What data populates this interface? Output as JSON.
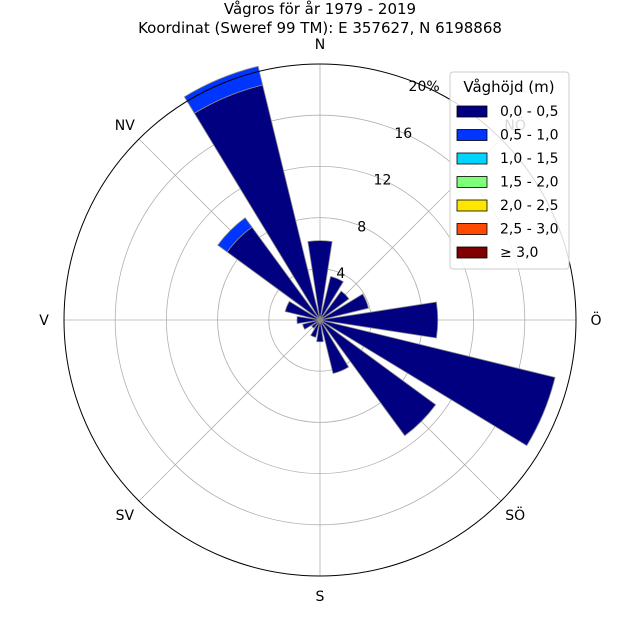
{
  "chart_data": {
    "type": "windrose",
    "title": "Vågros för år 1979 - 2019",
    "subtitle": "Koordinat (Sweref 99 TM): E 357627, N 6198868",
    "directions": [
      "N",
      "NNÖ",
      "NÖ",
      "ÖNÖ",
      "Ö",
      "ÖSÖ",
      "SÖ",
      "SSÖ",
      "S",
      "SSV",
      "SV",
      "VSV",
      "V",
      "VNV",
      "NV",
      "NNV"
    ],
    "direction_labels": [
      {
        "label": "N",
        "angle_deg": 0
      },
      {
        "label": "NÖ",
        "angle_deg": 45
      },
      {
        "label": "Ö",
        "angle_deg": 90
      },
      {
        "label": "SÖ",
        "angle_deg": 135
      },
      {
        "label": "S",
        "angle_deg": 180
      },
      {
        "label": "SV",
        "angle_deg": 225
      },
      {
        "label": "V",
        "angle_deg": 270
      },
      {
        "label": "NV",
        "angle_deg": 315
      }
    ],
    "radial_unit": "%",
    "rmax": 20,
    "radial_ticks": [
      {
        "value": 4,
        "label": "4"
      },
      {
        "value": 8,
        "label": "8"
      },
      {
        "value": 12,
        "label": "12"
      },
      {
        "value": 16,
        "label": "16"
      },
      {
        "value": 20,
        "label": "20%"
      }
    ],
    "legend_title": "Våghöjd (m)",
    "legend_position": "top-right",
    "series": [
      {
        "name": "0,0 - 0,5",
        "color": "#000080",
        "values": [
          6.2,
          3.5,
          2.8,
          3.9,
          9.2,
          18.9,
          11.2,
          4.3,
          1.7,
          1.4,
          0.8,
          1.4,
          1.8,
          2.8,
          9.0,
          18.9
        ]
      },
      {
        "name": "0,5 - 1,0",
        "color": "#0034ff",
        "values": [
          0,
          0,
          0,
          0,
          0,
          0,
          0,
          0,
          0,
          0,
          0,
          0,
          0,
          0,
          0.9,
          1.5
        ]
      },
      {
        "name": "1,0 - 1,5",
        "color": "#00d4ff",
        "values": [
          0,
          0,
          0,
          0,
          0,
          0,
          0,
          0,
          0,
          0,
          0,
          0,
          0,
          0,
          0,
          0
        ]
      },
      {
        "name": "1,5 - 2,0",
        "color": "#7dff7a",
        "values": [
          0,
          0,
          0,
          0,
          0,
          0,
          0,
          0,
          0,
          0,
          0,
          0,
          0,
          0,
          0,
          0
        ]
      },
      {
        "name": "2,0 - 2,5",
        "color": "#ffe600",
        "values": [
          0,
          0,
          0,
          0,
          0,
          0,
          0,
          0,
          0,
          0,
          0,
          0,
          0,
          0,
          0,
          0
        ]
      },
      {
        "name": "2,5 - 3,0",
        "color": "#ff4a00",
        "values": [
          0,
          0,
          0,
          0,
          0,
          0,
          0,
          0,
          0,
          0,
          0,
          0,
          0,
          0,
          0,
          0
        ]
      },
      {
        "name": "≥ 3,0",
        "color": "#800000",
        "values": [
          0,
          0,
          0,
          0,
          0,
          0,
          0,
          0,
          0,
          0,
          0,
          0,
          0,
          0,
          0,
          0
        ]
      }
    ],
    "grid": true
  }
}
